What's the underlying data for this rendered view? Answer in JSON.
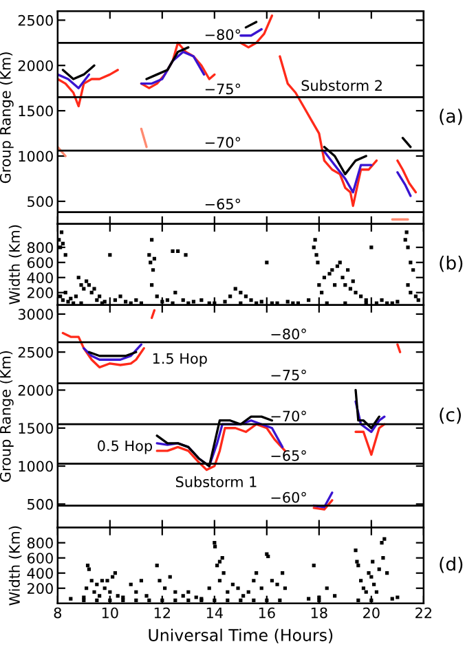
{
  "chart_data": [
    {
      "type": "line",
      "ylabel": "Group Range (Km)",
      "xlim": [
        8,
        22
      ],
      "xticks": [
        8,
        10,
        12,
        14,
        16,
        18,
        20,
        22
      ],
      "ylim": [
        250,
        2600
      ],
      "yticks": [
        500,
        1000,
        1500,
        2000,
        2500
      ],
      "tick_labels": "y",
      "series": [
        {
          "color": "#ff2a1a",
          "x": [
            8.0,
            8.3,
            8.6,
            8.8,
            9.0,
            9.3,
            9.6,
            10.0,
            10.3,
            10.4,
            11.2,
            11.5,
            11.8,
            12.1,
            12.4,
            12.6,
            12.9,
            13.2,
            13.5,
            13.8,
            14.0,
            14.1,
            15.0,
            15.3,
            15.6,
            15.9,
            16.2,
            16.4,
            16.5,
            16.8,
            17.1,
            17.4,
            17.7,
            18.0,
            18.2,
            18.5,
            18.8,
            19.0,
            19.2,
            19.3,
            19.6,
            19.9,
            20.2,
            20.3,
            21.0,
            21.2,
            21.45,
            21.7
          ],
          "values": [
            1850,
            1800,
            1700,
            1550,
            1800,
            1850,
            1850,
            1900,
            1950,
            null,
            1800,
            1750,
            1800,
            1900,
            2050,
            2250,
            2150,
            2100,
            2000,
            1850,
            1900,
            null,
            2250,
            2200,
            2250,
            2350,
            2550,
            null,
            2100,
            1800,
            1700,
            1550,
            1400,
            1250,
            950,
            850,
            800,
            650,
            600,
            450,
            850,
            850,
            950,
            null,
            950,
            850,
            700,
            600
          ]
        },
        {
          "color": "#ff8a70",
          "x": [
            8.0,
            8.3,
            8.35,
            11.2,
            11.4,
            11.45,
            20.8,
            21.4
          ],
          "values": [
            1100,
            1000,
            null,
            1300,
            1100,
            null,
            300,
            300
          ]
        },
        {
          "color": "#3a14d0",
          "x": [
            8.0,
            8.4,
            8.8,
            9.2,
            9.4,
            11.2,
            11.6,
            12.0,
            12.4,
            12.8,
            13.2,
            13.6,
            13.8,
            15.0,
            15.4,
            15.8,
            16.0,
            18.2,
            18.6,
            19.0,
            19.3,
            19.6,
            20.0
          ],
          "values": [
            1900,
            1850,
            1750,
            1900,
            null,
            1800,
            1800,
            1850,
            2050,
            2150,
            2100,
            1900,
            null,
            2330,
            2330,
            2400,
            null,
            1050,
            900,
            750,
            600,
            900,
            900
          ]
        },
        {
          "color": "#3a14d0",
          "x": [
            21.0,
            21.3,
            21.5
          ],
          "values": [
            820,
            680,
            560
          ]
        },
        {
          "color": "#000000",
          "x": [
            8.2,
            8.6,
            9.0,
            9.4,
            9.6,
            11.4,
            11.8,
            12.2,
            12.6,
            13.0,
            13.4,
            15.2,
            15.6,
            15.9,
            18.2,
            18.6,
            19.0,
            19.4,
            19.8,
            20.2,
            21.2,
            21.5
          ],
          "values": [
            1950,
            1850,
            1900,
            2000,
            null,
            1850,
            1900,
            1950,
            2150,
            2200,
            null,
            2420,
            2480,
            null,
            1100,
            1000,
            800,
            950,
            1000,
            null,
            1200,
            1100
          ]
        }
      ],
      "ref_lines": [
        {
          "axis": "y",
          "value": 2250,
          "label": "−80°",
          "color": "#000000"
        },
        {
          "axis": "y",
          "value": 1650,
          "label": "−75°",
          "color": "#000000"
        },
        {
          "axis": "y",
          "value": 1060,
          "label": "−70°",
          "color": "#000000"
        },
        {
          "axis": "y",
          "value": 380,
          "label": "−65°",
          "color": "#000000"
        }
      ],
      "annotations": [
        {
          "text": "Substorm 2",
          "x": 17.3,
          "y": 1765
        },
        "(a)"
      ]
    },
    {
      "type": "scatter",
      "marker": "square",
      "ylabel": "Width (Km)",
      "xlim": [
        8,
        22
      ],
      "xticks": [
        8,
        10,
        12,
        14,
        16,
        18,
        20,
        22
      ],
      "ylim": [
        36,
        1110
      ],
      "yticks": [
        200,
        400,
        600,
        800
      ],
      "tick_labels": "y",
      "series": [
        {
          "color": "#000000",
          "x": [
            8.05,
            8.1,
            8.15,
            8.2,
            8.3,
            8.1,
            8.2,
            8.3,
            8.4,
            8.5,
            8.6,
            8.7,
            8.8,
            8.9,
            9.0,
            9.1,
            9.2,
            9.3,
            9.4,
            9.5,
            9.6,
            9.8,
            10.0,
            10.2,
            10.4,
            10.6,
            11.0,
            11.2,
            11.5,
            11.55,
            11.6,
            11.65,
            11.7,
            11.6,
            11.8,
            12.0,
            12.2,
            12.4,
            12.6,
            12.5,
            12.8,
            12.9,
            13.2,
            13.5,
            14.0,
            14.4,
            14.6,
            14.8,
            15.0,
            15.2,
            15.4,
            15.8,
            16.0,
            16.4,
            16.8,
            17.2,
            17.6,
            17.8,
            17.85,
            17.9,
            17.95,
            18.0,
            18.1,
            18.2,
            18.4,
            18.5,
            18.6,
            18.7,
            18.8,
            18.9,
            19.0,
            19.1,
            19.2,
            19.3,
            19.4,
            19.6,
            19.8,
            20.0,
            20.2,
            20.4,
            20.8,
            21.0,
            21.3,
            21.35,
            21.4,
            21.5,
            21.6,
            21.4,
            21.5,
            21.7,
            21.8,
            8.9,
            9.7,
            10.8,
            12.4,
            13.0,
            13.8,
            15.0,
            15.6,
            16.2,
            17.0,
            18.3,
            19.0,
            19.8,
            20.6
          ],
          "values": [
            900,
            800,
            1000,
            850,
            700,
            150,
            100,
            200,
            80,
            120,
            60,
            150,
            400,
            300,
            250,
            350,
            300,
            200,
            250,
            100,
            150,
            80,
            700,
            100,
            150,
            80,
            100,
            60,
            700,
            600,
            900,
            500,
            650,
            300,
            150,
            80,
            100,
            750,
            750,
            200,
            100,
            700,
            80,
            100,
            60,
            80,
            150,
            250,
            200,
            150,
            100,
            80,
            600,
            60,
            80,
            60,
            100,
            800,
            900,
            700,
            600,
            300,
            200,
            400,
            450,
            500,
            300,
            550,
            600,
            400,
            300,
            500,
            250,
            350,
            200,
            150,
            100,
            800,
            60,
            100,
            60,
            80,
            900,
            1000,
            800,
            600,
            500,
            300,
            200,
            150,
            100,
            60,
            60,
            60,
            60,
            60,
            60,
            60,
            60,
            60,
            60,
            60,
            60,
            60,
            60
          ]
        }
      ],
      "annotations": [
        "(b)"
      ]
    },
    {
      "type": "line",
      "ylabel": "Group Range (Km)",
      "xlim": [
        8,
        22
      ],
      "xticks": [
        8,
        10,
        12,
        14,
        16,
        18,
        20,
        22
      ],
      "ylim": [
        190,
        3120
      ],
      "yticks": [
        500,
        1000,
        1500,
        2000,
        2500,
        3000
      ],
      "tick_labels": "y",
      "series": [
        {
          "color": "#ff2a1a",
          "x": [
            8.2,
            8.5,
            8.8,
            9.0,
            9.3,
            9.6,
            10.0,
            10.4,
            10.8,
            11.0,
            11.3,
            11.5,
            11.6,
            11.7,
            11.75,
            11.8,
            12.2,
            12.6,
            13.0,
            13.4,
            13.7,
            14.0,
            14.2,
            14.4,
            14.8,
            15.2,
            15.6,
            16.0,
            16.3,
            16.7,
            16.75,
            17.8,
            18.2,
            18.5,
            18.55,
            19.4,
            19.7,
            20.0,
            20.3,
            20.5,
            20.6,
            21.0,
            21.1
          ],
          "values": [
            2750,
            2700,
            2700,
            2550,
            2400,
            2300,
            2350,
            2330,
            2350,
            2400,
            2550,
            null,
            2950,
            3050,
            null,
            1200,
            1200,
            1250,
            1200,
            1050,
            950,
            1000,
            1200,
            1500,
            1500,
            1450,
            1550,
            1500,
            1350,
            1200,
            null,
            450,
            430,
            550,
            null,
            1450,
            1450,
            1150,
            1500,
            1550,
            null,
            2600,
            2500
          ]
        },
        {
          "color": "#3a14d0",
          "x": [
            9.0,
            9.3,
            9.6,
            10.0,
            10.4,
            10.8,
            11.2,
            11.4,
            11.8,
            12.2,
            12.6,
            13.0,
            13.4,
            13.8,
            14.1,
            14.3,
            14.6,
            15.0,
            15.4,
            15.8,
            16.2,
            16.6,
            16.7,
            17.8,
            18.2,
            18.5,
            18.6,
            19.4,
            19.6,
            20.0,
            20.3,
            20.5
          ],
          "values": [
            2550,
            2450,
            2400,
            2400,
            2400,
            2450,
            2600,
            null,
            1300,
            1280,
            1300,
            1250,
            1100,
            1000,
            1300,
            1550,
            1550,
            1550,
            1600,
            1550,
            1500,
            1250,
            null,
            480,
            460,
            650,
            null,
            1850,
            1550,
            1450,
            1600,
            1650
          ]
        },
        {
          "color": "#000000",
          "x": [
            9.2,
            9.6,
            10.0,
            10.6,
            11.0,
            11.2,
            11.8,
            12.2,
            12.6,
            13.0,
            13.4,
            13.8,
            14.2,
            14.6,
            15.0,
            15.4,
            15.8,
            16.2,
            16.4,
            19.4,
            19.5,
            19.7,
            20.0,
            20.3
          ],
          "values": [
            2500,
            2450,
            2450,
            2450,
            2500,
            null,
            1400,
            1300,
            1300,
            1250,
            1100,
            1000,
            1600,
            1600,
            1550,
            1650,
            1650,
            1600,
            null,
            2000,
            1600,
            1600,
            1500,
            1650
          ]
        }
      ],
      "ref_lines": [
        {
          "axis": "y",
          "value": 2630,
          "label": "−80°",
          "color": "#000000"
        },
        {
          "axis": "y",
          "value": 2090,
          "label": "−75°",
          "color": "#000000"
        },
        {
          "axis": "y",
          "value": 1550,
          "label": "−70°",
          "color": "#000000"
        },
        {
          "axis": "y",
          "value": 1030,
          "label": "−65°",
          "color": "#000000"
        },
        {
          "axis": "y",
          "value": 480,
          "label": "−60°",
          "color": "#000000"
        }
      ],
      "annotations": [
        "1.5 Hop",
        "0.5 Hop",
        "Substorm 1",
        "(c)"
      ]
    },
    {
      "type": "scatter",
      "marker": "square",
      "ylabel": "Width (Km)",
      "xlabel": "Universal Time (Hours)",
      "xlim": [
        8,
        22
      ],
      "xticks": [
        8,
        10,
        12,
        14,
        16,
        18,
        20,
        22
      ],
      "ylim": [
        0,
        1000
      ],
      "yticks": [
        200,
        400,
        600,
        800
      ],
      "series": [
        {
          "color": "#000000",
          "x": [
            8.5,
            9.0,
            9.1,
            9.15,
            9.2,
            9.3,
            9.4,
            9.5,
            9.6,
            9.7,
            9.8,
            9.9,
            10.0,
            10.1,
            10.2,
            10.3,
            10.5,
            10.8,
            11.0,
            11.2,
            11.4,
            11.8,
            11.9,
            12.1,
            12.3,
            12.5,
            12.8,
            13.0,
            13.3,
            13.5,
            13.8,
            14.0,
            14.02,
            14.1,
            14.2,
            14.3,
            14.35,
            14.2,
            14.5,
            14.7,
            14.9,
            15.1,
            15.3,
            15.5,
            15.6,
            15.8,
            16.0,
            16.05,
            16.2,
            16.4,
            16.6,
            16.7,
            17.8,
            17.6,
            18.0,
            18.3,
            18.6,
            19.4,
            19.45,
            19.5,
            19.6,
            19.7,
            19.8,
            19.9,
            20.0,
            20.05,
            20.1,
            20.2,
            20.3,
            20.4,
            20.5,
            20.45,
            20.6,
            20.8,
            21.0,
            9.0,
            9.5,
            10.0,
            10.5,
            11.0,
            11.5,
            12.0,
            12.5,
            13.0,
            13.5,
            14.0,
            14.5,
            15.0,
            15.5,
            16.0,
            16.5,
            18.0,
            19.5,
            20.0
          ],
          "values": [
            60,
            80,
            200,
            500,
            450,
            300,
            150,
            250,
            100,
            300,
            200,
            300,
            150,
            350,
            400,
            100,
            80,
            250,
            150,
            300,
            100,
            500,
            300,
            200,
            350,
            150,
            100,
            150,
            80,
            60,
            200,
            800,
            750,
            500,
            550,
            600,
            400,
            300,
            150,
            250,
            200,
            100,
            150,
            300,
            400,
            200,
            650,
            620,
            300,
            250,
            400,
            200,
            500,
            60,
            80,
            200,
            100,
            700,
            550,
            500,
            300,
            200,
            150,
            400,
            350,
            550,
            250,
            150,
            450,
            800,
            850,
            600,
            400,
            60,
            80,
            40,
            40,
            40,
            40,
            40,
            40,
            40,
            40,
            40,
            40,
            40,
            40,
            40,
            40,
            40,
            40,
            40,
            40,
            40
          ]
        }
      ],
      "annotations": [
        "(d)"
      ]
    }
  ]
}
